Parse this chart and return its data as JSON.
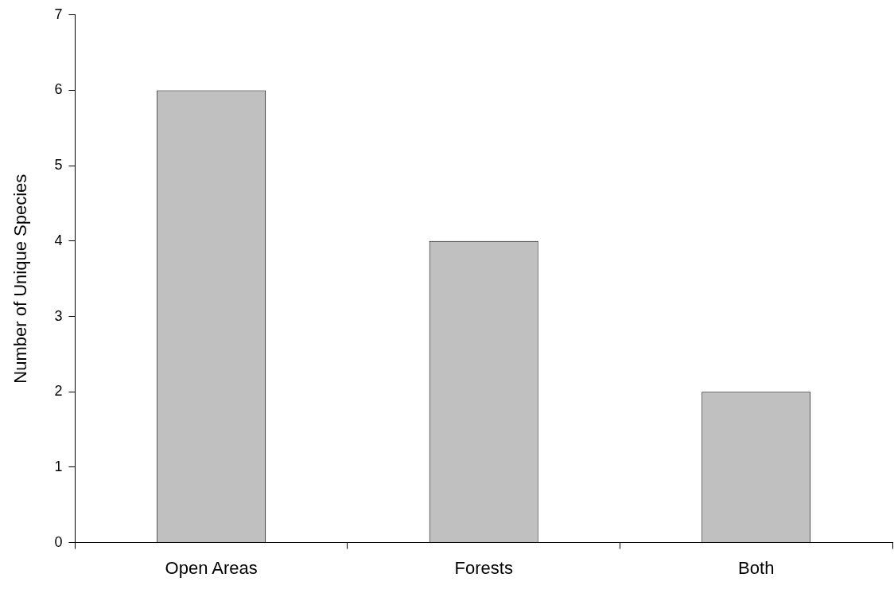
{
  "chart_data": {
    "type": "bar",
    "ylabel": "Number of Unique Species",
    "categories": [
      "Open Areas",
      "Forests",
      "Both"
    ],
    "values": [
      6,
      4,
      2
    ],
    "color": "#c0c0c0",
    "ylim": [
      0,
      7
    ],
    "yticks": [
      0,
      1,
      2,
      3,
      4,
      5,
      6,
      7
    ]
  }
}
